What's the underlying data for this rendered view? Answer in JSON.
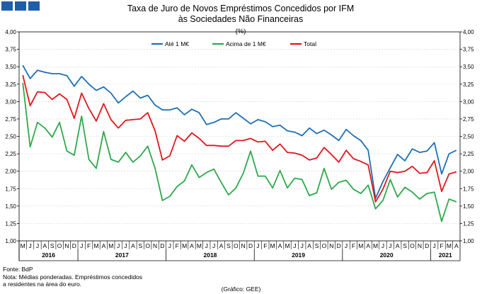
{
  "chart_data": {
    "type": "line",
    "title": "Taxa de Juro de Novos Empréstimos Concedidos por IFM",
    "subtitle": "às Sociedades Não Financeiras",
    "unit": "(%)",
    "ylim": [
      1.0,
      4.0
    ],
    "y_ticks": [
      "1,00",
      "1,25",
      "1,50",
      "1,75",
      "2,00",
      "2,25",
      "2,50",
      "2,75",
      "3,00",
      "3,25",
      "3,50",
      "3,75",
      "4,00"
    ],
    "grid": true,
    "legend_position": "top-center",
    "month_labels": [
      "M",
      "J",
      "J",
      "A",
      "S",
      "O",
      "N",
      "D",
      "J",
      "F",
      "M",
      "A",
      "M",
      "J",
      "J",
      "A",
      "S",
      "O",
      "N",
      "D",
      "J",
      "F",
      "M",
      "A",
      "M",
      "J",
      "J",
      "A",
      "S",
      "O",
      "N",
      "D",
      "J",
      "F",
      "M",
      "A",
      "M",
      "J",
      "J",
      "A",
      "S",
      "O",
      "N",
      "D",
      "J",
      "F",
      "M",
      "A",
      "M",
      "J",
      "J",
      "A",
      "S",
      "O",
      "N",
      "D",
      "J",
      "F",
      "M",
      "A"
    ],
    "years": [
      {
        "label": "2016",
        "start": 0,
        "end": 7
      },
      {
        "label": "2017",
        "start": 8,
        "end": 19
      },
      {
        "label": "2018",
        "start": 20,
        "end": 31
      },
      {
        "label": "2019",
        "start": 32,
        "end": 43
      },
      {
        "label": "2020",
        "start": 44,
        "end": 55
      },
      {
        "label": "2021",
        "start": 56,
        "end": 59
      }
    ],
    "series": [
      {
        "name": "Até 1 M€",
        "color": "#1f6fb4",
        "values": [
          3.52,
          3.33,
          3.45,
          3.42,
          3.4,
          3.4,
          3.37,
          3.22,
          3.36,
          3.25,
          3.16,
          3.21,
          3.12,
          2.98,
          3.07,
          3.15,
          3.05,
          3.09,
          2.95,
          2.88,
          2.88,
          2.91,
          2.81,
          2.89,
          2.84,
          2.67,
          2.7,
          2.75,
          2.75,
          2.84,
          2.76,
          2.68,
          2.74,
          2.71,
          2.64,
          2.66,
          2.58,
          2.56,
          2.51,
          2.62,
          2.54,
          2.59,
          2.52,
          2.44,
          2.6,
          2.51,
          2.44,
          2.3,
          1.61,
          1.85,
          2.05,
          2.24,
          2.15,
          2.32,
          2.27,
          2.29,
          2.41,
          1.96,
          2.25,
          2.3
        ]
      },
      {
        "name": "Acima de 1 M€",
        "color": "#2ea84a",
        "values": [
          3.27,
          2.35,
          2.7,
          2.62,
          2.49,
          2.7,
          2.29,
          2.23,
          2.79,
          2.17,
          2.04,
          2.57,
          2.17,
          2.13,
          2.27,
          2.13,
          2.22,
          2.36,
          2.04,
          1.58,
          1.64,
          1.78,
          1.86,
          2.09,
          1.91,
          1.98,
          2.03,
          1.84,
          1.66,
          1.76,
          1.97,
          2.29,
          1.93,
          1.93,
          1.76,
          2.01,
          1.76,
          1.9,
          1.88,
          1.65,
          1.69,
          2.04,
          1.74,
          1.84,
          1.87,
          1.74,
          1.68,
          1.8,
          1.46,
          1.58,
          1.88,
          1.63,
          1.77,
          1.7,
          1.6,
          1.68,
          1.7,
          1.28,
          1.6,
          1.56
        ]
      },
      {
        "name": "Total",
        "color": "#e0161c",
        "values": [
          3.38,
          2.94,
          3.14,
          3.13,
          3.03,
          3.11,
          3.03,
          2.76,
          3.12,
          2.9,
          2.72,
          2.97,
          2.74,
          2.62,
          2.73,
          2.74,
          2.75,
          2.84,
          2.58,
          2.16,
          2.22,
          2.51,
          2.43,
          2.55,
          2.47,
          2.37,
          2.37,
          2.36,
          2.36,
          2.44,
          2.44,
          2.47,
          2.42,
          2.43,
          2.3,
          2.39,
          2.27,
          2.26,
          2.23,
          2.16,
          2.19,
          2.34,
          2.24,
          2.13,
          2.3,
          2.18,
          2.14,
          2.09,
          1.56,
          1.74,
          2.0,
          1.98,
          2.0,
          2.07,
          1.97,
          1.98,
          2.15,
          1.71,
          1.96,
          1.99
        ]
      }
    ]
  },
  "footer": {
    "source": "Fonte: BdP",
    "note_line1": "Nota: Médias ponderadas. Empréstimos concedidos",
    "note_line2": "a residentes na área do euro.",
    "credit": "(Gráfico: GEE)"
  }
}
